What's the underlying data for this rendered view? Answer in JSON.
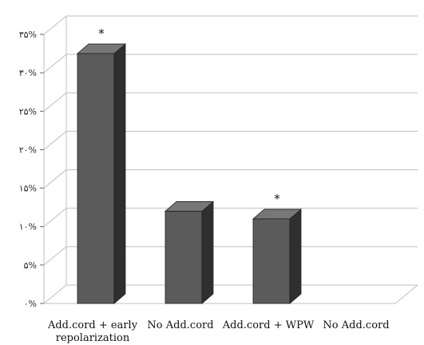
{
  "chart_data": {
    "type": "bar",
    "style": "3d",
    "categories": [
      [
        "Add.cord + early",
        "repolarization"
      ],
      [
        "No Add.cord"
      ],
      [
        "Add.cord + WPW"
      ],
      [
        "No Add.cord"
      ]
    ],
    "values": [
      32.5,
      12,
      11,
      0
    ],
    "annotations": [
      "*",
      "",
      "*",
      ""
    ],
    "ylim": [
      0,
      35
    ],
    "yticks": [
      {
        "value": 0,
        "label": "۰%"
      },
      {
        "value": 5,
        "label": "۵%"
      },
      {
        "value": 10,
        "label": "۱۰%"
      },
      {
        "value": 15,
        "label": "۱۵%"
      },
      {
        "value": 20,
        "label": "۲۰%"
      },
      {
        "value": 25,
        "label": "۲۵%"
      },
      {
        "value": 30,
        "label": "۳۰%"
      },
      {
        "value": 35,
        "label": "۳۵%"
      }
    ],
    "grid": true,
    "colors": {
      "bar_front": "#5b5b5b",
      "bar_side": "#2f2f2f",
      "bar_top": "#777777",
      "grid": "#bfbfbf"
    }
  }
}
